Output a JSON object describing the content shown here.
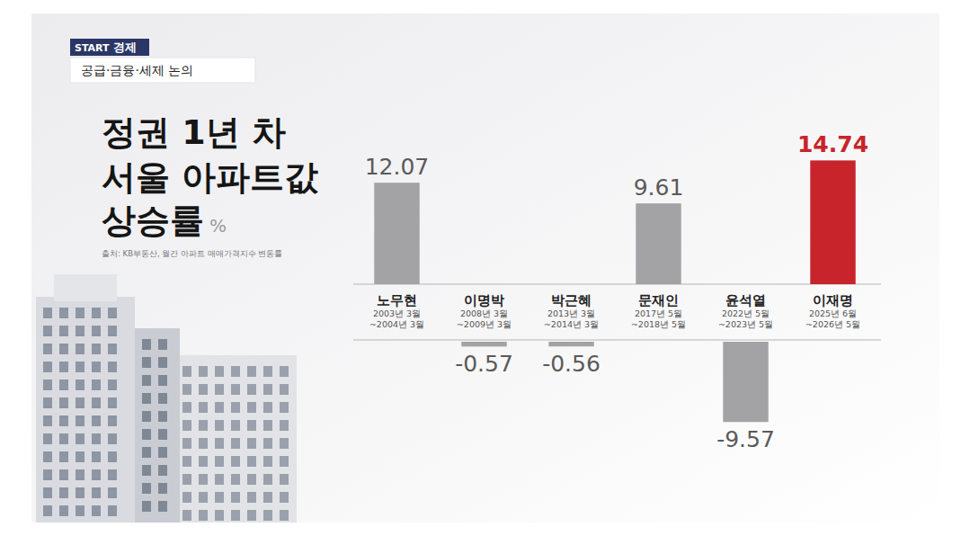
{
  "chart_data": {
    "type": "bar",
    "badge": "START 경제",
    "subtitle": "공급·금융·세제 논의",
    "title": [
      "정권 1년 차",
      "서울 아파트값",
      "상승률"
    ],
    "unit": "%",
    "source": "출처: KB부동산, 월간 아파트 매매가격지수 변동률",
    "categories": [
      "노무현",
      "이명박",
      "박근혜",
      "문재인",
      "윤석열",
      "이재명"
    ],
    "periods": [
      [
        "2003년 3월",
        "~2004년 3월"
      ],
      [
        "2008년 3월",
        "~2009년 3월"
      ],
      [
        "2013년 3월",
        "~2014년 3월"
      ],
      [
        "2017년 5월",
        "~2018년 5월"
      ],
      [
        "2022년 5월",
        "~2023년 5월"
      ],
      [
        "2025년 6월",
        "~2026년 5월"
      ]
    ],
    "values": [
      12.07,
      -0.57,
      -0.56,
      9.61,
      -9.57,
      14.74
    ],
    "colors": [
      "#a3a3a6",
      "#a3a3a6",
      "#a3a3a6",
      "#a3a3a6",
      "#a3a3a6",
      "#c8242b"
    ],
    "ylim": [
      -9.57,
      14.74
    ],
    "data_labels": true,
    "tick_labels": false,
    "grid": false
  }
}
